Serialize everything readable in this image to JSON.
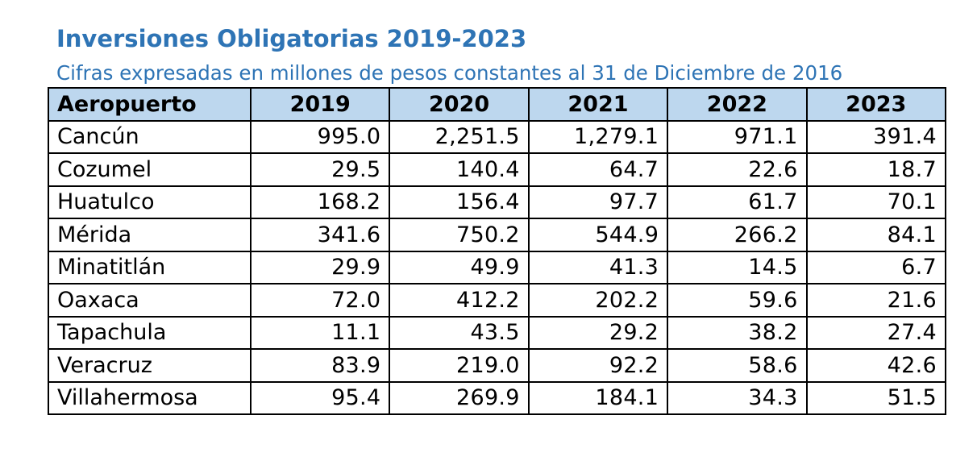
{
  "title": "Inversiones Obligatorias 2019-2023",
  "subtitle": "Cifras expresadas en millones de pesos constantes al 31 de Diciembre de 2016",
  "colors": {
    "heading_text": "#2e74b5",
    "header_fill": "#bdd7ee",
    "border": "#000000"
  },
  "table": {
    "headers": [
      "Aeropuerto",
      "2019",
      "2020",
      "2021",
      "2022",
      "2023"
    ],
    "rows": [
      [
        "Cancún",
        "995.0",
        "2,251.5",
        "1,279.1",
        "971.1",
        "391.4"
      ],
      [
        "Cozumel",
        "29.5",
        "140.4",
        "64.7",
        "22.6",
        "18.7"
      ],
      [
        "Huatulco",
        "168.2",
        "156.4",
        "97.7",
        "61.7",
        "70.1"
      ],
      [
        "Mérida",
        "341.6",
        "750.2",
        "544.9",
        "266.2",
        "84.1"
      ],
      [
        "Minatitlán",
        "29.9",
        "49.9",
        "41.3",
        "14.5",
        "6.7"
      ],
      [
        "Oaxaca",
        "72.0",
        "412.2",
        "202.2",
        "59.6",
        "21.6"
      ],
      [
        "Tapachula",
        "11.1",
        "43.5",
        "29.2",
        "38.2",
        "27.4"
      ],
      [
        "Veracruz",
        "83.9",
        "219.0",
        "92.2",
        "58.6",
        "42.6"
      ],
      [
        "Villahermosa",
        "95.4",
        "269.9",
        "184.1",
        "34.3",
        "51.5"
      ]
    ]
  }
}
